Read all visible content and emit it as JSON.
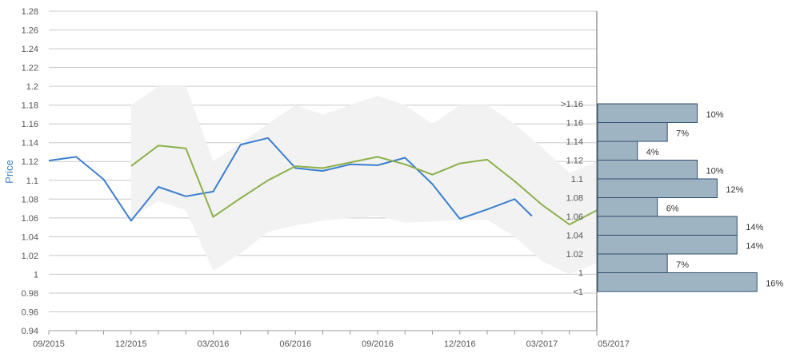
{
  "chart_data": {
    "type": "line",
    "ylabel": "Price",
    "ylim": [
      0.94,
      1.28
    ],
    "ytick_step": 0.02,
    "yticks": [
      "0.94",
      "0.96",
      "0.98",
      "1",
      "1.02",
      "1.04",
      "1.06",
      "1.08",
      "1.1",
      "1.12",
      "1.14",
      "1.16",
      "1.18",
      "1.2",
      "1.22",
      "1.24",
      "1.26",
      "1.28"
    ],
    "x_dates": [
      "2015-09",
      "2015-10",
      "2015-11",
      "2015-12",
      "2016-01",
      "2016-02",
      "2016-03",
      "2016-04",
      "2016-05",
      "2016-06",
      "2016-07",
      "2016-08",
      "2016-09",
      "2016-10",
      "2016-11",
      "2016-12",
      "2017-01",
      "2017-02",
      "2017-03",
      "2017-04",
      "2017-05"
    ],
    "xtick_labels": [
      "09/2015",
      "12/2015",
      "03/2016",
      "06/2016",
      "09/2016",
      "12/2016",
      "03/2017",
      "05/2017"
    ],
    "grid": true,
    "series": [
      {
        "color": "#3b7fd0",
        "points": [
          [
            "2015-09",
            1.121
          ],
          [
            "2015-10",
            1.125
          ],
          [
            "2015-11",
            1.101
          ],
          [
            "2015-12",
            1.057
          ],
          [
            "2016-01",
            1.093
          ],
          [
            "2016-02",
            1.083
          ],
          [
            "2016-03",
            1.088
          ],
          [
            "2016-04",
            1.138
          ],
          [
            "2016-05",
            1.145
          ],
          [
            "2016-06",
            1.113
          ],
          [
            "2016-07",
            1.11
          ],
          [
            "2016-08",
            1.117
          ],
          [
            "2016-09",
            1.116
          ],
          [
            "2016-10",
            1.124
          ],
          [
            "2016-11",
            1.096
          ],
          [
            "2016-12",
            1.059
          ],
          [
            "2017-01",
            1.069
          ],
          [
            "2017-02",
            1.08
          ],
          [
            "2017-02-20",
            1.062
          ]
        ]
      },
      {
        "color": "#8db04a",
        "points": [
          [
            "2015-12",
            1.115
          ],
          [
            "2016-01",
            1.137
          ],
          [
            "2016-02",
            1.134
          ],
          [
            "2016-03",
            1.061
          ],
          [
            "2016-04",
            1.081
          ],
          [
            "2016-05",
            1.1
          ],
          [
            "2016-06",
            1.115
          ],
          [
            "2016-07",
            1.113
          ],
          [
            "2016-08",
            1.119
          ],
          [
            "2016-09",
            1.125
          ],
          [
            "2016-10",
            1.117
          ],
          [
            "2016-11",
            1.106
          ],
          [
            "2016-12",
            1.118
          ],
          [
            "2017-01",
            1.122
          ],
          [
            "2017-02",
            1.099
          ],
          [
            "2017-03",
            1.074
          ],
          [
            "2017-04",
            1.053
          ],
          [
            "2017-05",
            1.068
          ]
        ]
      }
    ],
    "band": {
      "color": "#f2f2f2",
      "upper": [
        [
          "2015-12",
          1.18
        ],
        [
          "2016-01",
          1.2
        ],
        [
          "2016-02",
          1.2
        ],
        [
          "2016-03",
          1.12
        ],
        [
          "2016-04",
          1.14
        ],
        [
          "2016-05",
          1.16
        ],
        [
          "2016-06",
          1.18
        ],
        [
          "2016-07",
          1.17
        ],
        [
          "2016-08",
          1.18
        ],
        [
          "2016-09",
          1.19
        ],
        [
          "2016-10",
          1.18
        ],
        [
          "2016-11",
          1.16
        ],
        [
          "2016-12",
          1.18
        ],
        [
          "2017-01",
          1.18
        ],
        [
          "2017-02",
          1.16
        ],
        [
          "2017-03",
          1.135
        ],
        [
          "2017-04",
          1.108
        ],
        [
          "2017-05",
          1.12
        ]
      ],
      "lower": [
        [
          "2015-12",
          1.06
        ],
        [
          "2016-01",
          1.078
        ],
        [
          "2016-02",
          1.068
        ],
        [
          "2016-03",
          1.004
        ],
        [
          "2016-04",
          1.022
        ],
        [
          "2016-05",
          1.045
        ],
        [
          "2016-06",
          1.052
        ],
        [
          "2016-07",
          1.057
        ],
        [
          "2016-08",
          1.06
        ],
        [
          "2016-09",
          1.062
        ],
        [
          "2016-10",
          1.055
        ],
        [
          "2016-11",
          1.056
        ],
        [
          "2016-12",
          1.058
        ],
        [
          "2017-01",
          1.058
        ],
        [
          "2017-02",
          1.04
        ],
        [
          "2017-03",
          1.014
        ],
        [
          "2017-04",
          1.0
        ],
        [
          "2017-05",
          1.012
        ]
      ]
    },
    "histogram": {
      "type": "bar",
      "orientation": "horizontal",
      "bar_color": "#9fb4c2",
      "categories": [
        ">1.16",
        "1.16",
        "1.14",
        "1.12",
        "1.1",
        "1.08",
        "1.06",
        "1.04",
        "1.02",
        "1",
        "<1"
      ],
      "values": [
        10,
        7,
        4,
        10,
        12,
        6,
        14,
        14,
        7,
        16,
        0
      ],
      "labels": [
        "10%",
        "7%",
        "4%",
        "10%",
        "12%",
        "6%",
        "14%",
        "14%",
        "7%",
        "16%",
        ""
      ]
    }
  }
}
